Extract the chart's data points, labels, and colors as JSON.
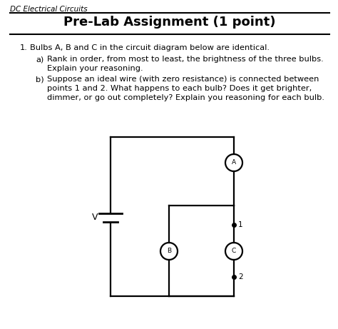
{
  "background_color": "#ffffff",
  "header_text": "DC Electrical Circuits",
  "title": "Pre-Lab Assignment (1 point)",
  "question_number": "1.",
  "question_text": "Bulbs A, B and C in the circuit diagram below are identical.",
  "part_a_label": "a)",
  "part_a_line1": "Rank in order, from most to least, the brightness of the three bulbs.",
  "part_a_line2": "Explain your reasoning.",
  "part_b_label": "b)",
  "part_b_line1": "Suppose an ideal wire (with zero resistance) is connected between",
  "part_b_line2": "points 1 and 2. What happens to each bulb? Does it get brighter,",
  "part_b_line3": "dimmer, or go out completely? Explain you reasoning for each bulb.",
  "line_color": "#000000",
  "text_color": "#000000",
  "font_size_header": 7.5,
  "font_size_title": 13,
  "font_size_body": 8.2,
  "font_size_label": 7.5,
  "font_family": "DejaVu Sans"
}
